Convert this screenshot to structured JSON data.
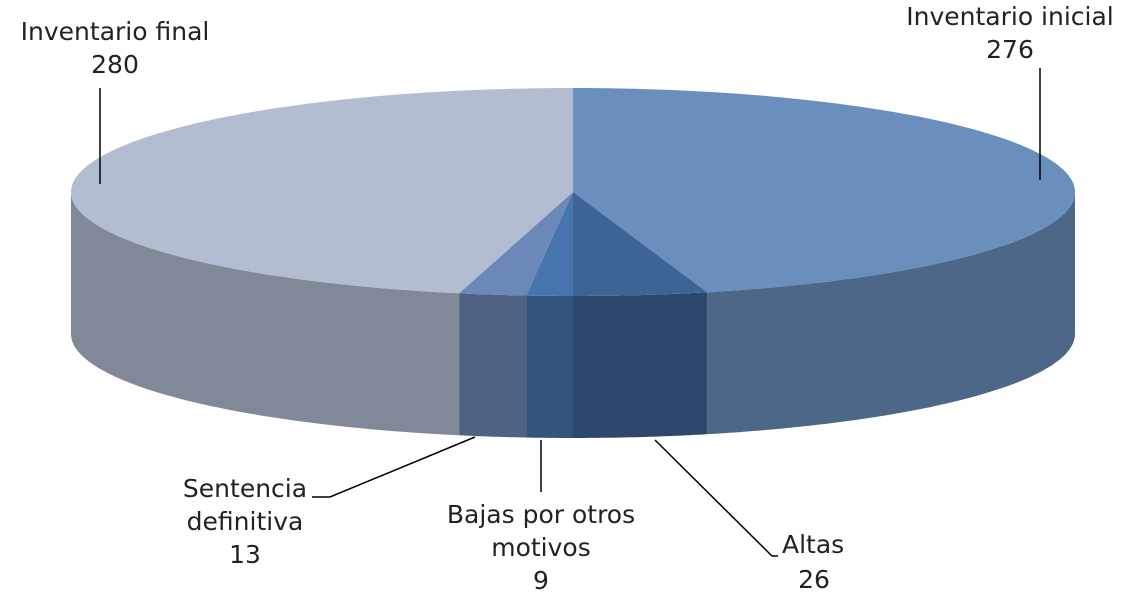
{
  "chart_data": {
    "type": "pie3d",
    "categories": [
      "Inventario inicial",
      "Altas",
      "Bajas por otros motivos",
      "Sentencia definitiva",
      "Inventario final"
    ],
    "values": [
      276,
      26,
      9,
      13,
      280
    ],
    "colors": [
      "#6b8fbd",
      "#3e6496",
      "#4675ad",
      "#6c88b8",
      "#b3bdd2"
    ]
  }
}
